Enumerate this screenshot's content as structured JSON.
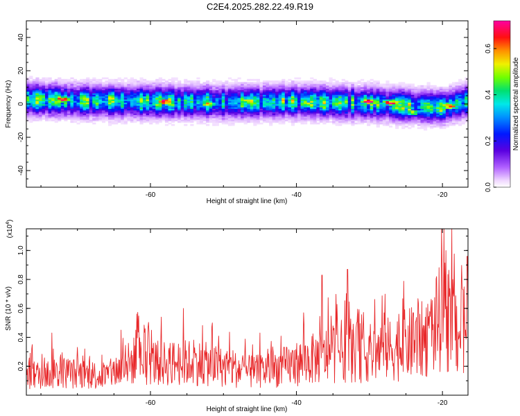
{
  "title": "C2E4.2025.282.22.49.R19",
  "colors": {
    "snr_line": "#e8282a",
    "axis": "#000000",
    "background": "#ffffff"
  },
  "chart_data": [
    {
      "type": "heatmap",
      "xlabel": "Height of straight line (km)",
      "ylabel": "Frequency (Hz)",
      "xlim": [
        -77,
        -16.5
      ],
      "ylim": [
        -50,
        50
      ],
      "x_ticks": [
        "-60",
        "-40",
        "-20"
      ],
      "y_ticks": [
        "40",
        "20",
        "0",
        "-20",
        "-40"
      ],
      "colorbar": {
        "label": "Normalized spectral amplitude",
        "range": [
          0.0,
          0.72
        ],
        "ticks": [
          "0.0",
          "0.2",
          "0.4",
          "0.6"
        ],
        "colormap": "rainbow (white → purple → blue → cyan → green → yellow → red → magenta)"
      },
      "description_of_data": "Energy concentrated in a narrow band around 0 Hz (roughly -8 to +8 Hz) across the full height range, with hot spots near -72, -58, -52, -30, -27, -24 and -19 km.",
      "band_center_hz": [
        [
          -77,
          3
        ],
        [
          -70,
          2
        ],
        [
          -60,
          1.5
        ],
        [
          -50,
          1
        ],
        [
          -40,
          1.5
        ],
        [
          -30,
          0.5
        ],
        [
          -25,
          -1
        ],
        [
          -20,
          -2
        ],
        [
          -16.5,
          2
        ]
      ],
      "band_halfwidth_hz": 5,
      "hotspots": [
        {
          "x": -72,
          "y": 3,
          "v": 0.65
        },
        {
          "x": -58,
          "y": 1.5,
          "v": 0.72
        },
        {
          "x": -52,
          "y": 0,
          "v": 0.55
        },
        {
          "x": -47,
          "y": 2,
          "v": 0.5
        },
        {
          "x": -38,
          "y": 0,
          "v": 0.5
        },
        {
          "x": -30,
          "y": 1.5,
          "v": 0.7
        },
        {
          "x": -27,
          "y": 1,
          "v": 0.68
        },
        {
          "x": -24,
          "y": -5,
          "v": 0.5
        },
        {
          "x": -19,
          "y": -1,
          "v": 0.65
        }
      ]
    },
    {
      "type": "line",
      "xlabel": "Height of straight line (km)",
      "ylabel": "SNR (10 * v/v)",
      "y_multiplier": "(x10^4)",
      "xlim": [
        -77,
        -16.5
      ],
      "ylim": [
        0,
        1.15
      ],
      "x_ticks": [
        "-60",
        "-40",
        "-20"
      ],
      "y_ticks": [
        "0.2",
        "0.4",
        "0.6",
        "0.8",
        "1.0"
      ],
      "series": [
        {
          "baseline": [
            [
              -77,
              0.15
            ],
            [
              -72,
              0.18
            ],
            [
              -66,
              0.15
            ],
            [
              -62,
              0.28
            ],
            [
              -58,
              0.25
            ],
            [
              -54,
              0.26
            ],
            [
              -50,
              0.22
            ],
            [
              -46,
              0.18
            ],
            [
              -42,
              0.22
            ],
            [
              -38,
              0.28
            ],
            [
              -34,
              0.35
            ],
            [
              -30,
              0.33
            ],
            [
              -26,
              0.38
            ],
            [
              -22,
              0.45
            ],
            [
              -19.8,
              0.65
            ],
            [
              -18,
              0.5
            ],
            [
              -16.5,
              0.55
            ]
          ],
          "peaks": [
            [
              -76.2,
              0.35
            ],
            [
              -73.5,
              0.43
            ],
            [
              -64,
              0.45
            ],
            [
              -62,
              0.45
            ],
            [
              -58.5,
              0.54
            ],
            [
              -55.5,
              0.6
            ],
            [
              -51.5,
              0.5
            ],
            [
              -45,
              0.43
            ],
            [
              -39,
              0.57
            ],
            [
              -36.5,
              0.83
            ],
            [
              -33,
              0.87
            ],
            [
              -31.5,
              0.56
            ],
            [
              -28,
              0.57
            ],
            [
              -24,
              0.57
            ],
            [
              -22,
              0.63
            ],
            [
              -20,
              0.75
            ],
            [
              -19.8,
              1.15
            ],
            [
              -19.5,
              1.0
            ],
            [
              -18.6,
              0.8
            ],
            [
              -17.2,
              0.73
            ],
            [
              -16.6,
              0.96
            ]
          ]
        }
      ]
    }
  ]
}
